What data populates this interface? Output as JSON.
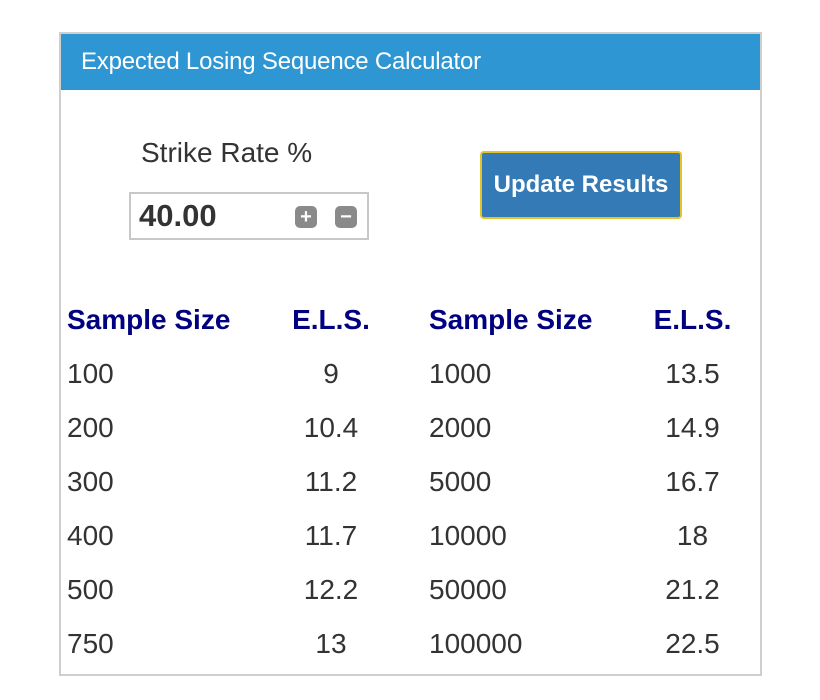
{
  "header": {
    "title": "Expected Losing Sequence Calculator"
  },
  "strike_rate": {
    "label": "Strike Rate %",
    "value": "40.00",
    "plus_symbol": "+",
    "minus_symbol": "−"
  },
  "update_button": {
    "label": "Update Results"
  },
  "table": {
    "headers": [
      "Sample Size",
      "E.L.S.",
      "Sample Size",
      "E.L.S."
    ],
    "rows": [
      [
        "100",
        "9",
        "1000",
        "13.5"
      ],
      [
        "200",
        "10.4",
        "2000",
        "14.9"
      ],
      [
        "300",
        "11.2",
        "5000",
        "16.7"
      ],
      [
        "400",
        "11.7",
        "10000",
        "18"
      ],
      [
        "500",
        "12.2",
        "50000",
        "21.2"
      ],
      [
        "750",
        "13",
        "100000",
        "22.5"
      ]
    ]
  },
  "colors": {
    "header_bg": "#2e96d2",
    "button_bg": "#337ab7",
    "button_border": "#e6c229",
    "table_header_text": "#000080"
  },
  "icons": {
    "plus": "plus-square-icon",
    "minus": "minus-square-icon"
  }
}
